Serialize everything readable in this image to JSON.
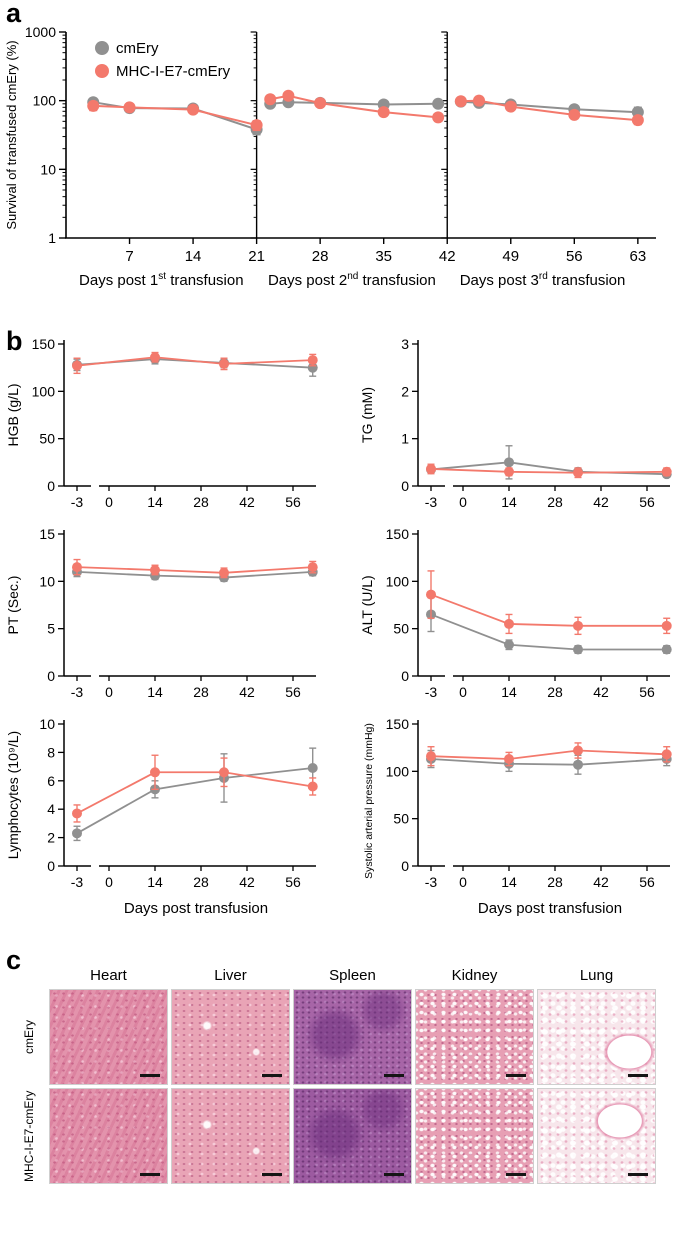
{
  "figure": {
    "panels": {
      "a": "a",
      "b": "b",
      "c": "c"
    }
  },
  "colors": {
    "cmEry": "#909090",
    "mhc": "#F3796C",
    "axis": "#000000"
  },
  "chart_data": [
    {
      "id": "survival",
      "type": "line",
      "ylabel": "Survival of transfused cmEry (%)",
      "yscale": "log",
      "ylim": [
        1,
        1000
      ],
      "yticks": [
        1,
        10,
        100,
        1000
      ],
      "xlim": [
        0,
        65
      ],
      "xticks": [
        7,
        14,
        21,
        28,
        35,
        42,
        49,
        56,
        63
      ],
      "segment_breaks": [
        21,
        42
      ],
      "segment_labels": [
        {
          "pre": "Days post 1",
          "sup": "st",
          "post": " transfusion"
        },
        {
          "pre": "Days post 2",
          "sup": "nd",
          "post": " transfusion"
        },
        {
          "pre": "Days post 3",
          "sup": "rd",
          "post": " transfusion"
        }
      ],
      "legend": {
        "position": "top-left",
        "items": [
          "cmEry",
          "MHC-I-E7-cmEry"
        ]
      },
      "series": [
        {
          "name": "cmEry",
          "color": "#909090",
          "x": [
            3,
            7,
            14,
            21,
            22.5,
            24.5,
            28,
            35,
            41,
            43.5,
            45.5,
            49,
            56,
            63
          ],
          "y": [
            95,
            78,
            77,
            38,
            90,
            95,
            93,
            88,
            90,
            97,
            93,
            88,
            75,
            68
          ],
          "err": [
            12,
            8,
            8,
            6,
            10,
            9,
            8,
            8,
            9,
            9,
            8,
            8,
            9,
            12
          ]
        },
        {
          "name": "MHC-I-E7-cmEry",
          "color": "#F3796C",
          "x": [
            3,
            7,
            14,
            21,
            22.5,
            24.5,
            28,
            35,
            41,
            43.5,
            45.5,
            49,
            56,
            63
          ],
          "y": [
            84,
            80,
            74,
            44,
            105,
            118,
            92,
            68,
            57,
            98,
            100,
            82,
            62,
            52
          ],
          "err": [
            12,
            8,
            8,
            7,
            12,
            14,
            9,
            8,
            7,
            10,
            10,
            8,
            7,
            7
          ]
        }
      ]
    },
    {
      "id": "hgb",
      "type": "line",
      "ylabel": "HGB (g/L)",
      "xlabel": "",
      "ylim": [
        0,
        150
      ],
      "yticks": [
        0,
        50,
        100,
        150
      ],
      "x": [
        -3,
        14,
        35,
        62
      ],
      "xticks": [
        -3,
        0,
        14,
        28,
        42,
        56
      ],
      "series": [
        {
          "name": "cmEry",
          "color": "#909090",
          "y": [
            128,
            134,
            130,
            125
          ],
          "err": [
            6,
            5,
            5,
            9
          ]
        },
        {
          "name": "MHC-I-E7-cmEry",
          "color": "#F3796C",
          "y": [
            127,
            136,
            129,
            133
          ],
          "err": [
            8,
            5,
            6,
            6
          ]
        }
      ]
    },
    {
      "id": "tg",
      "type": "line",
      "ylabel": "TG (mM)",
      "xlabel": "",
      "ylim": [
        0,
        3
      ],
      "yticks": [
        0,
        1,
        2,
        3
      ],
      "x": [
        -3,
        14,
        35,
        62
      ],
      "xticks": [
        -3,
        0,
        14,
        28,
        42,
        56
      ],
      "series": [
        {
          "name": "cmEry",
          "color": "#909090",
          "y": [
            0.35,
            0.5,
            0.3,
            0.25
          ],
          "err": [
            0.08,
            0.35,
            0.08,
            0.05
          ]
        },
        {
          "name": "MHC-I-E7-cmEry",
          "color": "#F3796C",
          "y": [
            0.36,
            0.3,
            0.28,
            0.3
          ],
          "err": [
            0.1,
            0.08,
            0.1,
            0.08
          ]
        }
      ]
    },
    {
      "id": "pt",
      "type": "line",
      "ylabel": "PT (Sec.)",
      "xlabel": "",
      "ylim": [
        0,
        15
      ],
      "yticks": [
        0,
        5,
        10,
        15
      ],
      "x": [
        -3,
        14,
        35,
        62
      ],
      "xticks": [
        -3,
        0,
        14,
        28,
        42,
        56
      ],
      "series": [
        {
          "name": "cmEry",
          "color": "#909090",
          "y": [
            11.0,
            10.6,
            10.4,
            11.0
          ],
          "err": [
            0.5,
            0.4,
            0.4,
            0.4
          ]
        },
        {
          "name": "MHC-I-E7-cmEry",
          "color": "#F3796C",
          "y": [
            11.5,
            11.2,
            10.9,
            11.5
          ],
          "err": [
            0.8,
            0.5,
            0.5,
            0.6
          ]
        }
      ]
    },
    {
      "id": "alt",
      "type": "line",
      "ylabel": "ALT (U/L)",
      "xlabel": "",
      "ylim": [
        0,
        150
      ],
      "yticks": [
        0,
        50,
        100,
        150
      ],
      "x": [
        -3,
        14,
        35,
        62
      ],
      "xticks": [
        -3,
        0,
        14,
        28,
        42,
        56
      ],
      "series": [
        {
          "name": "cmEry",
          "color": "#909090",
          "y": [
            65,
            33,
            28,
            28
          ],
          "err": [
            18,
            5,
            4,
            4
          ]
        },
        {
          "name": "MHC-I-E7-cmEry",
          "color": "#F3796C",
          "y": [
            86,
            55,
            53,
            53
          ],
          "err": [
            25,
            10,
            9,
            8
          ]
        }
      ]
    },
    {
      "id": "lymph",
      "type": "line",
      "ylabel": "Lymphocytes (10⁹/L)",
      "xlabel": "Days post transfusion",
      "ylim": [
        0,
        10
      ],
      "yticks": [
        0,
        2,
        4,
        6,
        8,
        10
      ],
      "x": [
        -3,
        14,
        35,
        62
      ],
      "xticks": [
        -3,
        0,
        14,
        28,
        42,
        56
      ],
      "series": [
        {
          "name": "cmEry",
          "color": "#909090",
          "y": [
            2.3,
            5.4,
            6.2,
            6.9
          ],
          "err": [
            0.5,
            0.6,
            1.7,
            1.4
          ]
        },
        {
          "name": "MHC-I-E7-cmEry",
          "color": "#F3796C",
          "y": [
            3.7,
            6.6,
            6.6,
            5.6
          ],
          "err": [
            0.6,
            1.2,
            1.0,
            0.6
          ]
        }
      ]
    },
    {
      "id": "sap",
      "type": "line",
      "ylabel": "Systolic arterial pressure (mmHg)",
      "xlabel": "Days post transfusion",
      "ylim": [
        0,
        150
      ],
      "yticks": [
        0,
        50,
        100,
        150
      ],
      "x": [
        -3,
        14,
        35,
        62
      ],
      "xticks": [
        -3,
        0,
        14,
        28,
        42,
        56
      ],
      "series": [
        {
          "name": "cmEry",
          "color": "#909090",
          "y": [
            113,
            108,
            107,
            113
          ],
          "err": [
            9,
            8,
            10,
            7
          ]
        },
        {
          "name": "MHC-I-E7-cmEry",
          "color": "#F3796C",
          "y": [
            116,
            113,
            122,
            118
          ],
          "err": [
            10,
            7,
            8,
            8
          ]
        }
      ]
    }
  ],
  "panel_c": {
    "columns": [
      "Heart",
      "Liver",
      "Spleen",
      "Kidney",
      "Lung"
    ],
    "rows": [
      {
        "label": "cmEry",
        "key": "cmery"
      },
      {
        "label": "MHC-I-E7-cmEry",
        "key": "mhc"
      }
    ],
    "organ_keys": [
      "heart",
      "liver",
      "spleen",
      "kidney",
      "lung"
    ]
  }
}
